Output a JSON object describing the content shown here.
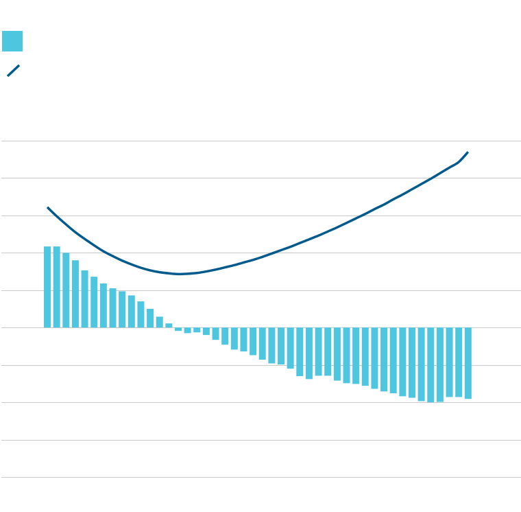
{
  "chart_data": {
    "type": "bar",
    "categories": [
      null,
      null,
      null,
      null,
      null,
      null,
      null,
      null,
      null,
      null,
      null,
      null,
      null,
      null,
      null,
      null,
      null,
      null,
      null,
      null,
      null,
      null,
      null,
      null,
      null,
      null,
      null,
      null,
      null,
      null,
      null,
      null,
      null,
      null,
      null,
      null,
      null,
      null,
      null,
      null,
      null,
      null,
      null,
      null,
      null,
      null
    ],
    "series": [
      {
        "type": "bar",
        "color": "#4ec6e0",
        "values": [
          2.17,
          2.17,
          2.0,
          1.8,
          1.53,
          1.36,
          1.18,
          1.05,
          0.97,
          0.86,
          0.7,
          0.5,
          0.29,
          0.11,
          -0.09,
          -0.15,
          -0.13,
          -0.2,
          -0.33,
          -0.46,
          -0.59,
          -0.64,
          -0.74,
          -0.86,
          -0.96,
          -0.99,
          -1.1,
          -1.3,
          -1.38,
          -1.29,
          -1.29,
          -1.42,
          -1.49,
          -1.51,
          -1.56,
          -1.64,
          -1.71,
          -1.76,
          -1.84,
          -1.88,
          -1.97,
          -2.0,
          -1.99,
          -1.86,
          -1.86,
          -1.91
        ]
      },
      {
        "type": "line",
        "color": "#005a8c",
        "values": [
          3.22,
          2.98,
          2.76,
          2.55,
          2.37,
          2.2,
          2.04,
          1.91,
          1.79,
          1.69,
          1.6,
          1.53,
          1.48,
          1.45,
          1.43,
          1.44,
          1.46,
          1.5,
          1.55,
          1.61,
          1.67,
          1.74,
          1.81,
          1.89,
          1.98,
          2.07,
          2.16,
          2.26,
          2.36,
          2.46,
          2.57,
          2.68,
          2.8,
          2.92,
          3.04,
          3.17,
          3.29,
          3.43,
          3.56,
          3.7,
          3.84,
          3.98,
          4.13,
          4.28,
          4.43,
          4.7
        ]
      }
    ],
    "ylim": [
      -4,
      5
    ],
    "yticks": [
      -4,
      -3,
      -2,
      -1,
      0,
      1,
      2,
      3,
      4,
      5
    ],
    "grid": true
  }
}
